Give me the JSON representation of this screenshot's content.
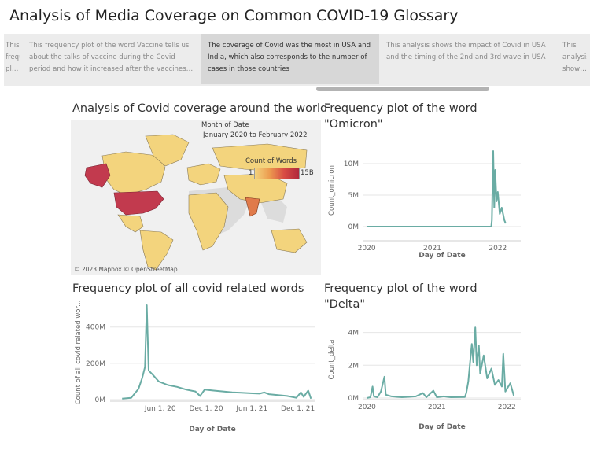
{
  "dashboard": {
    "title": "Analysis of Media Coverage on Common COVID-19 Glossary"
  },
  "story_points": [
    {
      "text": "This frequency plot of the word Vaccine tells us about the talks of vaccine during the Covid period and how it increased after the vaccines started r..."
    },
    {
      "text": "This frequency plot of the word Vaccine tells us about the talks of vaccine during the Covid period and how it increased after the vaccines started r..."
    },
    {
      "text": "The coverage of Covid was the most in USA and India, which also corresponds to the number of cases in those countries"
    },
    {
      "text": "This analysis shows the impact of Covid in USA and the timing of the 2nd and 3rd wave in USA"
    },
    {
      "text": "This analysis shows s sh..."
    }
  ],
  "map_panel": {
    "title": "Analysis of Covid coverage around the world",
    "filter_label": "Month of Date",
    "filter_value": "January 2020 to February 2022",
    "legend_title": "Count of Words",
    "legend_min": "1",
    "legend_max": "15B",
    "credit": "© 2023 Mapbox © OpenStreetMap",
    "colors": {
      "low": "#f3d47d",
      "high": "#c23a4e",
      "land_nodata": "#dcdcdc",
      "water": "#f0f0f0"
    }
  },
  "charts": {
    "omicron": {
      "title_line1": "Frequency plot of the word",
      "title_line2": "\"Omicron\""
    },
    "all_words": {
      "title_line1": "Frequency plot of all covid related words"
    },
    "delta": {
      "title_line1": "Frequency plot of the word",
      "title_line2": "\"Delta\""
    }
  },
  "chart_data": [
    {
      "id": "omicron",
      "type": "line",
      "color": "#6aaca4",
      "xlabel": "Day of Date",
      "ylabel": "Count_omicron",
      "x_ticks": [
        "2020",
        "2021",
        "2022"
      ],
      "y_ticks": [
        "0M",
        "5M",
        "10M"
      ],
      "ylim": [
        -2000000,
        13500000
      ],
      "xlim": [
        2019.95,
        2022.35
      ],
      "series": [
        {
          "points": [
            [
              2020.0,
              0
            ],
            [
              2021.5,
              0
            ],
            [
              2021.9,
              0
            ],
            [
              2021.91,
              1000000
            ],
            [
              2021.93,
              12000000
            ],
            [
              2021.945,
              3000000
            ],
            [
              2021.96,
              9000000
            ],
            [
              2021.98,
              4000000
            ],
            [
              2022.0,
              5500000
            ],
            [
              2022.03,
              2000000
            ],
            [
              2022.06,
              3000000
            ],
            [
              2022.1,
              1000000
            ],
            [
              2022.12,
              500000
            ]
          ]
        }
      ]
    },
    {
      "id": "all_words",
      "type": "line",
      "color": "#6aaca4",
      "xlabel": "Day of Date",
      "ylabel": "Count of all covid related wor...",
      "x_ticks": [
        "Jun 1, 20",
        "Dec 1, 20",
        "Jun 1, 21",
        "Dec 1, 21"
      ],
      "y_ticks": [
        "0M",
        "200M",
        "400M"
      ],
      "ylim": [
        0,
        520000000
      ],
      "xlim": [
        2019.87,
        2022.1
      ],
      "series": [
        {
          "points": [
            [
              2020.0,
              5000000
            ],
            [
              2020.1,
              10000000
            ],
            [
              2020.18,
              60000000
            ],
            [
              2020.22,
              120000000
            ],
            [
              2020.25,
              180000000
            ],
            [
              2020.27,
              520000000
            ],
            [
              2020.29,
              160000000
            ],
            [
              2020.33,
              140000000
            ],
            [
              2020.4,
              100000000
            ],
            [
              2020.5,
              80000000
            ],
            [
              2020.6,
              70000000
            ],
            [
              2020.7,
              55000000
            ],
            [
              2020.8,
              45000000
            ],
            [
              2020.85,
              20000000
            ],
            [
              2020.9,
              55000000
            ],
            [
              2021.0,
              50000000
            ],
            [
              2021.1,
              45000000
            ],
            [
              2021.2,
              40000000
            ],
            [
              2021.3,
              38000000
            ],
            [
              2021.4,
              35000000
            ],
            [
              2021.5,
              33000000
            ],
            [
              2021.55,
              40000000
            ],
            [
              2021.6,
              30000000
            ],
            [
              2021.7,
              25000000
            ],
            [
              2021.8,
              20000000
            ],
            [
              2021.9,
              10000000
            ],
            [
              2021.95,
              40000000
            ],
            [
              2021.98,
              15000000
            ],
            [
              2022.03,
              50000000
            ],
            [
              2022.06,
              5000000
            ]
          ]
        }
      ]
    },
    {
      "id": "delta",
      "type": "line",
      "color": "#6aaca4",
      "xlabel": "Day of Date",
      "ylabel": "Count_delta",
      "x_ticks": [
        "2020",
        "2021",
        "2022"
      ],
      "y_ticks": [
        "0M",
        "2M",
        "4M"
      ],
      "ylim": [
        0,
        4700000
      ],
      "xlim": [
        2019.95,
        2022.2
      ],
      "series": [
        {
          "points": [
            [
              2020.0,
              0
            ],
            [
              2020.05,
              50000
            ],
            [
              2020.08,
              700000
            ],
            [
              2020.1,
              100000
            ],
            [
              2020.15,
              50000
            ],
            [
              2020.2,
              400000
            ],
            [
              2020.25,
              1300000
            ],
            [
              2020.27,
              200000
            ],
            [
              2020.35,
              100000
            ],
            [
              2020.5,
              50000
            ],
            [
              2020.7,
              100000
            ],
            [
              2020.8,
              300000
            ],
            [
              2020.85,
              50000
            ],
            [
              2020.95,
              450000
            ],
            [
              2021.0,
              50000
            ],
            [
              2021.1,
              100000
            ],
            [
              2021.2,
              50000
            ],
            [
              2021.4,
              60000
            ],
            [
              2021.42,
              300000
            ],
            [
              2021.45,
              1000000
            ],
            [
              2021.48,
              2400000
            ],
            [
              2021.5,
              3300000
            ],
            [
              2021.52,
              2200000
            ],
            [
              2021.55,
              4300000
            ],
            [
              2021.57,
              2000000
            ],
            [
              2021.6,
              3200000
            ],
            [
              2021.62,
              1500000
            ],
            [
              2021.67,
              2600000
            ],
            [
              2021.72,
              1200000
            ],
            [
              2021.78,
              1800000
            ],
            [
              2021.83,
              800000
            ],
            [
              2021.88,
              1100000
            ],
            [
              2021.93,
              700000
            ],
            [
              2021.95,
              2700000
            ],
            [
              2021.98,
              400000
            ],
            [
              2022.05,
              900000
            ],
            [
              2022.1,
              150000
            ]
          ]
        }
      ]
    }
  ]
}
